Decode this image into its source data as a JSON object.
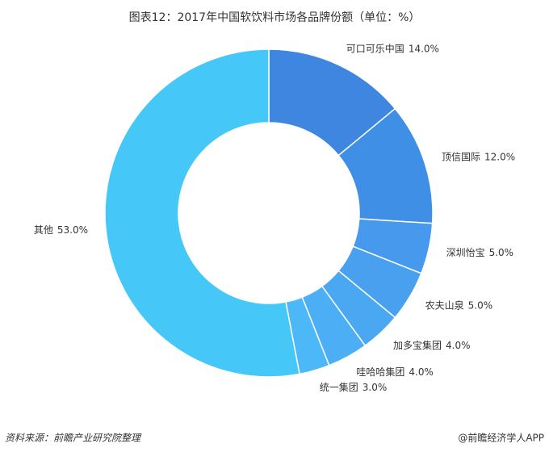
{
  "chart_data": {
    "type": "donut",
    "title": "图表12：2017年中国软饮料市场各品牌份额（单位：%）",
    "categories": [
      "可口可乐中国",
      "顶信国际",
      "深圳怡宝",
      "农夫山泉",
      "加多宝集团",
      "哇哈哈集团",
      "统一集团",
      "其他"
    ],
    "values": [
      14.0,
      12.0,
      5.0,
      5.0,
      4.0,
      4.0,
      3.0,
      53.0
    ],
    "value_labels": [
      "14.0%",
      "12.0%",
      "5.0%",
      "5.0%",
      "4.0%",
      "4.0%",
      "3.0%",
      "53.0%"
    ],
    "colors": [
      "#3f86e0",
      "#3f8fe6",
      "#4699ec",
      "#48a0ef",
      "#4aa7f2",
      "#4caff5",
      "#4db8f7",
      "#45c8f8"
    ],
    "source": "资料来源：前瞻产业研究院整理",
    "credit": "@前瞻经济学人APP"
  }
}
